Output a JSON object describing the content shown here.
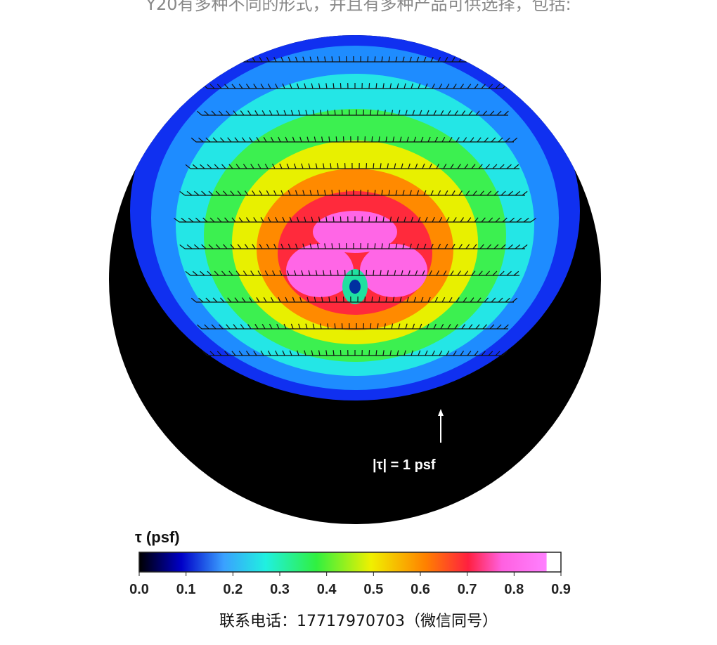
{
  "header_text": "Y20有多种不同的形式，并且有多种产品可供选择，包括:",
  "figure": {
    "scale_label": "|τ| = 1 psf",
    "colorbar_title": "τ (psf)",
    "colorbar_lim": [
      0,
      0.9
    ],
    "colorbar_ticks": [
      {
        "value": 0,
        "label": "0.0"
      },
      0.1,
      0.2,
      0.3,
      0.4,
      0.5,
      0.6,
      0.7,
      0.8,
      0.9
    ]
  },
  "footer_text": "联系电话：17717970703（微信同号）"
}
